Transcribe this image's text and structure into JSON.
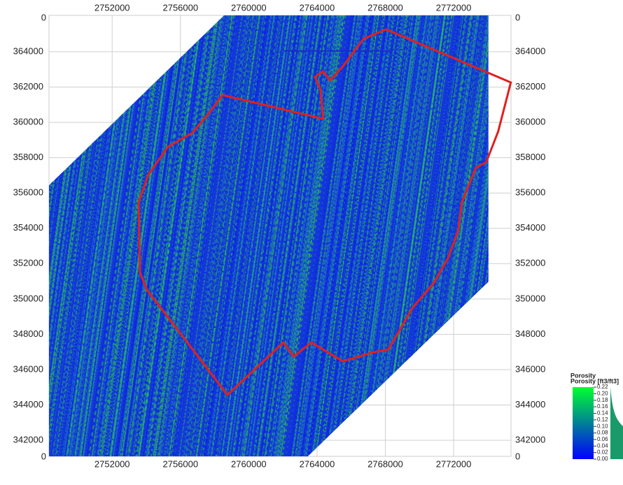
{
  "chart_data": {
    "type": "map",
    "xlim": [
      2748300,
      2775360
    ],
    "ylim": [
      341090,
      366060
    ],
    "xticks": [
      2752000,
      2756000,
      2760000,
      2764000,
      2768000,
      2772000
    ],
    "yticks": [
      342000,
      344000,
      346000,
      348000,
      350000,
      352000,
      354000,
      356000,
      358000,
      360000,
      362000,
      364000
    ],
    "corner_labels": [
      "0",
      "0",
      "0",
      "0"
    ],
    "grid": true,
    "field": {
      "x": [
        2748300,
        2758550,
        2774040,
        2774040,
        2763460,
        2748300
      ],
      "y": [
        356440,
        366060,
        366060,
        350980,
        341090,
        341090
      ]
    },
    "boundary": {
      "color": "#e02020",
      "x": [
        2758460,
        2764360,
        2764200,
        2763870,
        2764360,
        2764770,
        2765510,
        2766740,
        2768050,
        2775350,
        2774610,
        2773910,
        2773300,
        2772480,
        2772270,
        2771660,
        2770840,
        2769610,
        2768180,
        2767150,
        2765510,
        2763670,
        2762640,
        2762030,
        2758750,
        2756090,
        2754040,
        2753630,
        2753550,
        2754120,
        2755270,
        2756700,
        2757730
      ],
      "y": [
        361550,
        360200,
        361870,
        362580,
        362890,
        362380,
        363170,
        364750,
        365270,
        362260,
        359490,
        357750,
        357430,
        355460,
        353870,
        352290,
        350910,
        349520,
        347150,
        346950,
        346470,
        347540,
        346750,
        347540,
        344570,
        347940,
        350510,
        351500,
        355460,
        357040,
        358620,
        359410,
        360600
      ]
    },
    "segment": {
      "color": "#1a2cc8",
      "x": [
        2762030,
        2768380
      ],
      "y": [
        364040,
        364040
      ]
    },
    "colorbar": {
      "title": "Porosity",
      "label": "Porosity [ft3/ft3]",
      "colors": [
        "#0000ff",
        "#00ff30"
      ],
      "ticks": [
        {
          "value": 0.22,
          "label": "0.22"
        },
        {
          "value": 0.2,
          "label": "0.20"
        },
        {
          "value": 0.18,
          "label": "0.18"
        },
        {
          "value": 0.16,
          "label": "0.16"
        },
        {
          "value": 0.14,
          "label": "0.14"
        },
        {
          "value": 0.12,
          "label": "0.12"
        },
        {
          "value": 0.1,
          "label": "0.10"
        },
        {
          "value": 0.08,
          "label": "0.08"
        },
        {
          "value": 0.06,
          "label": "0.06"
        },
        {
          "value": 0.04,
          "label": "0.04"
        },
        {
          "value": 0.02,
          "label": "0.02"
        },
        {
          "value": 0,
          "label": "0.00"
        }
      ],
      "lim": [
        0,
        0.22
      ]
    }
  }
}
